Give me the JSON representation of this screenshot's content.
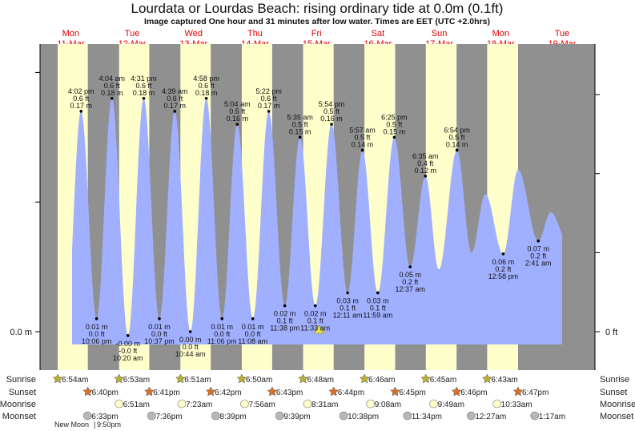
{
  "chart_data": {
    "type": "area",
    "title": "Lourdata or Lourdas Beach: rising  ordinary tide at 0.0m (0.1ft)",
    "subtitle": "Image captured One hour and 31 minutes after low water. Times are EET (UTC +2.0hrs)",
    "x_unit": "hours since 00:00 11-Mar",
    "days": [
      {
        "dow": "Mon",
        "date": "11-Mar"
      },
      {
        "dow": "Tue",
        "date": "12-Mar"
      },
      {
        "dow": "Wed",
        "date": "13-Mar"
      },
      {
        "dow": "Thu",
        "date": "14-Mar"
      },
      {
        "dow": "Fri",
        "date": "15-Mar"
      },
      {
        "dow": "Sat",
        "date": "16-Mar"
      },
      {
        "dow": "Sun",
        "date": "17-Mar"
      },
      {
        "dow": "Mon",
        "date": "18-Mar"
      },
      {
        "dow": "Tue",
        "date": "19-Mar"
      }
    ],
    "y_left_label": "0.0 m",
    "y_right_label": "0 ft",
    "ylim_m": [
      -0.03,
      0.225
    ],
    "curve_start_hours": 12.5,
    "curve_end_hours": 204,
    "now_hours": 109.07,
    "tides": [
      {
        "h": 10.0,
        "m": 0.0
      },
      {
        "h": 16.03,
        "m": 0.17,
        "type": "high",
        "time": "4:02 pm",
        "ft": "0.6 ft",
        "mlabel": "0.17 m"
      },
      {
        "h": 22.1,
        "m": 0.01,
        "type": "low",
        "time": "10:06 pm",
        "ft": "0.0 ft",
        "mlabel": "0.01 m"
      },
      {
        "h": 28.07,
        "m": 0.18,
        "type": "high",
        "time": "4:04 am",
        "ft": "0.6 ft",
        "mlabel": "0.18 m"
      },
      {
        "h": 34.33,
        "m": -0.003,
        "type": "low",
        "time": "10:20 am",
        "ft": "-0.0 ft",
        "mlabel": "-0.00 m"
      },
      {
        "h": 40.52,
        "m": 0.18,
        "type": "high",
        "time": "4:31 pm",
        "ft": "0.6 ft",
        "mlabel": "0.18 m"
      },
      {
        "h": 46.62,
        "m": 0.01,
        "type": "low",
        "time": "10:37 pm",
        "ft": "0.0 ft",
        "mlabel": "0.01 m"
      },
      {
        "h": 52.65,
        "m": 0.17,
        "type": "high",
        "time": "4:39 am",
        "ft": "0.6 ft",
        "mlabel": "0.17 m"
      },
      {
        "h": 58.73,
        "m": 0.0,
        "type": "low",
        "time": "10:44 am",
        "ft": "0.0 ft",
        "mlabel": "0.00 m"
      },
      {
        "h": 64.97,
        "m": 0.18,
        "type": "high",
        "time": "4:58 pm",
        "ft": "0.6 ft",
        "mlabel": "0.18 m"
      },
      {
        "h": 71.1,
        "m": 0.01,
        "type": "low",
        "time": "11:06 pm",
        "ft": "0.0 ft",
        "mlabel": "0.01 m"
      },
      {
        "h": 77.07,
        "m": 0.16,
        "type": "high",
        "time": "5:04 am",
        "ft": "0.5 ft",
        "mlabel": "0.16 m"
      },
      {
        "h": 83.13,
        "m": 0.01,
        "type": "low",
        "time": "11:08 am",
        "ft": "0.0 ft",
        "mlabel": "0.01 m"
      },
      {
        "h": 89.37,
        "m": 0.17,
        "type": "high",
        "time": "5:22 pm",
        "ft": "0.6 ft",
        "mlabel": "0.17 m"
      },
      {
        "h": 95.63,
        "m": 0.02,
        "type": "low",
        "time": "11:38 pm",
        "ft": "0.1 ft",
        "mlabel": "0.02 m"
      },
      {
        "h": 101.58,
        "m": 0.15,
        "type": "high",
        "time": "5:35 am",
        "ft": "0.5 ft",
        "mlabel": "0.15 m"
      },
      {
        "h": 107.55,
        "m": 0.02,
        "type": "low",
        "time": "11:33 am",
        "ft": "0.1 ft",
        "mlabel": "0.02 m"
      },
      {
        "h": 113.9,
        "m": 0.16,
        "type": "high",
        "time": "5:54 pm",
        "ft": "0.5 ft",
        "mlabel": "0.16 m"
      },
      {
        "h": 120.18,
        "m": 0.03,
        "type": "low",
        "time": "12:11 am",
        "ft": "0.1 ft",
        "mlabel": "0.03 m"
      },
      {
        "h": 125.95,
        "m": 0.14,
        "type": "high",
        "time": "5:57 am",
        "ft": "0.5 ft",
        "mlabel": "0.14 m"
      },
      {
        "h": 131.98,
        "m": 0.03,
        "type": "low",
        "time": "11:59 am",
        "ft": "0.1 ft",
        "mlabel": "0.03 m"
      },
      {
        "h": 138.42,
        "m": 0.15,
        "type": "high",
        "time": "6:25 pm",
        "ft": "0.5 ft",
        "mlabel": "0.15 m"
      },
      {
        "h": 144.62,
        "m": 0.05,
        "type": "low",
        "time": "12:37 am",
        "ft": "0.2 ft",
        "mlabel": "0.05 m"
      },
      {
        "h": 150.58,
        "m": 0.12,
        "type": "high",
        "time": "6:35 am",
        "ft": "0.4 ft",
        "mlabel": "0.12 m"
      },
      {
        "h": 155.8,
        "m": 0.048
      },
      {
        "h": 162.9,
        "m": 0.14,
        "type": "high",
        "time": "6:54 pm",
        "ft": "0.5 ft",
        "mlabel": "0.14 m"
      },
      {
        "h": 168.6,
        "m": 0.061
      },
      {
        "h": 174.0,
        "m": 0.106
      },
      {
        "h": 180.97,
        "m": 0.06,
        "type": "low",
        "time": "12:58 pm",
        "ft": "0.2 ft",
        "mlabel": "0.06 m"
      },
      {
        "h": 186.8,
        "m": 0.125
      },
      {
        "h": 194.68,
        "m": 0.07,
        "type": "low",
        "time": "2:41 am",
        "ft": "0.2 ft",
        "mlabel": "0.07 m"
      },
      {
        "h": 199.6,
        "m": 0.092
      },
      {
        "h": 206.0,
        "m": 0.07
      }
    ]
  },
  "almanac": {
    "row_labels": {
      "sunrise": "Sunrise",
      "sunset": "Sunset",
      "moonrise": "Moonrise",
      "moonset": "Moonset"
    },
    "sunrise": [
      "6:54am",
      "6:53am",
      "6:51am",
      "6:50am",
      "6:48am",
      "6:46am",
      "6:45am",
      "6:43am"
    ],
    "sunset": [
      "6:40pm",
      "6:41pm",
      "6:42pm",
      "6:43pm",
      "6:44pm",
      "6:45pm",
      "6:46pm",
      "6:47pm"
    ],
    "moonrise": [
      "6:51am",
      "7:23am",
      "7:56am",
      "8:31am",
      "9:08am",
      "9:49am",
      "10:33am"
    ],
    "moonset": [
      "6:33pm",
      "7:36pm",
      "8:39pm",
      "9:39pm",
      "10:38pm",
      "11:34pm",
      "12:27am",
      "1:17am"
    ],
    "moon_phase": "New Moon",
    "moon_phase_time": "9:50pm"
  },
  "colors": {
    "day": "#ffffcc",
    "night": "#909090",
    "water": "#a0b0ff",
    "day_label": "#e00000",
    "sunrise": "#b8b030",
    "sunset": "#d87028",
    "moonrise": "#ffffcc",
    "moonset": "#b8b8b0",
    "now_marker": "#e8e040"
  }
}
